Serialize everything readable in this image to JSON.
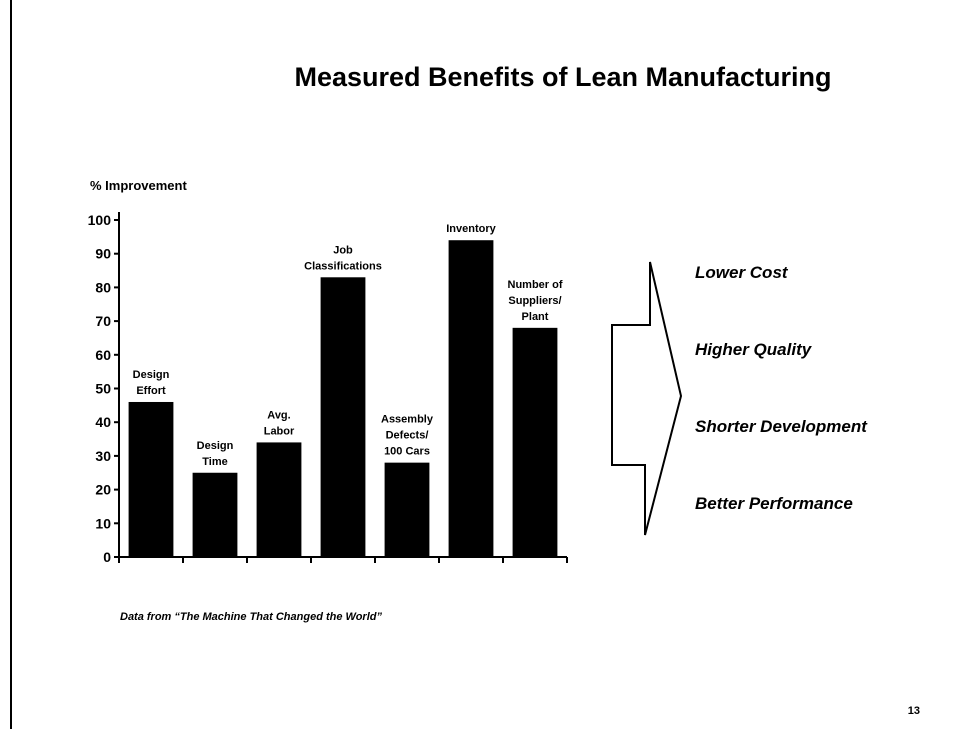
{
  "chart_data": {
    "type": "bar",
    "title": "Measured Benefits of Lean Manufacturing",
    "y_label": "% Improvement",
    "categories": [
      "Design\nEffort",
      "Design\nTime",
      "Avg.\nLabor",
      "Job\nClassifications",
      "Assembly\nDefects/\n100 Cars",
      "Inventory",
      "Number of\nSuppliers/\nPlant"
    ],
    "values": [
      46,
      25,
      34,
      83,
      28,
      94,
      68
    ],
    "color": "#000000",
    "ylim": [
      0,
      100
    ],
    "yticks": [
      0,
      10,
      20,
      30,
      40,
      50,
      60,
      70,
      80,
      90,
      100
    ],
    "benefits": [
      "Lower Cost",
      "Higher Quality",
      "Shorter Development",
      "Better Performance"
    ],
    "source": "Data from “The Machine That Changed the World”",
    "page_number": "13"
  }
}
